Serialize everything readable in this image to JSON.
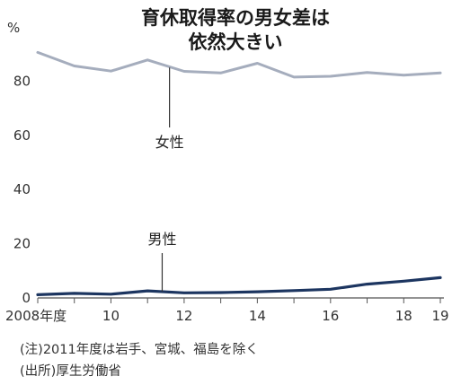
{
  "chart_data": {
    "type": "line",
    "title": [
      "育休取得率の男女差は",
      "依然大きい"
    ],
    "yunit": "%",
    "ylim": [
      0,
      100
    ],
    "yticks": [
      0,
      20,
      40,
      60,
      80
    ],
    "x": [
      2008,
      2009,
      2010,
      2011,
      2012,
      2013,
      2014,
      2015,
      2016,
      2017,
      2018,
      2019
    ],
    "xticks": [
      {
        "x": 2008,
        "label": "2008年度"
      },
      {
        "x": 2010,
        "label": "10"
      },
      {
        "x": 2012,
        "label": "12"
      },
      {
        "x": 2014,
        "label": "14"
      },
      {
        "x": 2016,
        "label": "16"
      },
      {
        "x": 2018,
        "label": "18"
      },
      {
        "x": 2019,
        "label": "19"
      }
    ],
    "series": [
      {
        "name": "女性",
        "color": "#a5adbd",
        "values": [
          90.6,
          85.6,
          83.7,
          87.8,
          83.6,
          83.0,
          86.6,
          81.5,
          81.8,
          83.2,
          82.2,
          83.0
        ]
      },
      {
        "name": "男性",
        "color": "#1c3560",
        "values": [
          1.2,
          1.7,
          1.4,
          2.6,
          1.9,
          2.0,
          2.3,
          2.7,
          3.2,
          5.1,
          6.2,
          7.5
        ]
      }
    ],
    "grid": false,
    "notes": [
      "(注)2011年度は岩手、宮城、福島を除く",
      "(出所)厚生労働省"
    ]
  }
}
